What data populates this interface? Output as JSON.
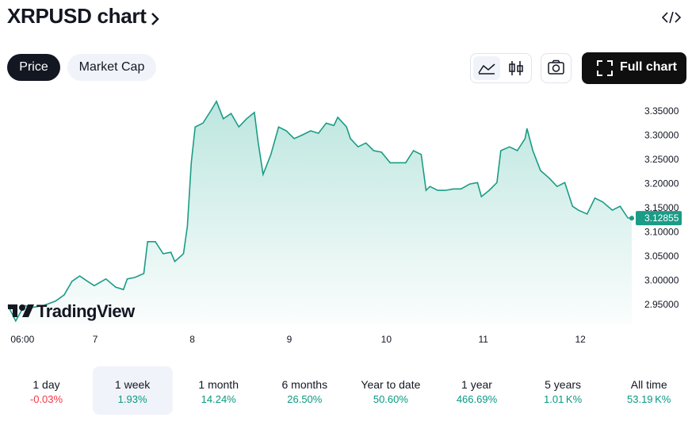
{
  "header": {
    "title": "XRPUSD chart"
  },
  "toolbar": {
    "tabs": [
      "Price",
      "Market Cap"
    ],
    "full_chart": "Full chart"
  },
  "watermark": "TradingView",
  "chart_data": {
    "type": "area",
    "x": [
      6.1,
      6.18,
      6.27,
      6.35,
      6.47,
      6.59,
      6.68,
      6.76,
      6.84,
      6.92,
      6.99,
      7.11,
      7.21,
      7.29,
      7.33,
      7.41,
      7.5,
      7.54,
      7.62,
      7.7,
      7.78,
      7.82,
      7.91,
      7.95,
      7.99,
      8.03,
      8.11,
      8.19,
      8.25,
      8.32,
      8.4,
      8.48,
      8.56,
      8.64,
      8.68,
      8.73,
      8.81,
      8.89,
      8.97,
      9.05,
      9.14,
      9.22,
      9.3,
      9.38,
      9.46,
      9.5,
      9.59,
      9.63,
      9.71,
      9.79,
      9.87,
      9.95,
      10.04,
      10.12,
      10.2,
      10.28,
      10.36,
      10.41,
      10.45,
      10.53,
      10.61,
      10.69,
      10.77,
      10.86,
      10.94,
      10.98,
      11.06,
      11.14,
      11.18,
      11.27,
      11.35,
      11.43,
      11.45,
      11.51,
      11.59,
      11.68,
      11.76,
      11.84,
      11.92,
      11.98,
      12.07,
      12.15,
      12.23,
      12.33,
      12.41,
      12.49,
      12.53
    ],
    "series": [
      {
        "name": "XRPUSD",
        "color": "#1a9c86",
        "values": [
          2.948,
          2.916,
          2.948,
          2.944,
          2.948,
          2.957,
          2.97,
          2.998,
          3.009,
          2.998,
          2.989,
          3.003,
          2.986,
          2.981,
          3.003,
          3.006,
          3.014,
          3.08,
          3.08,
          3.055,
          3.058,
          3.039,
          3.055,
          3.112,
          3.243,
          3.317,
          3.325,
          3.35,
          3.37,
          3.334,
          3.345,
          3.317,
          3.334,
          3.347,
          3.284,
          3.219,
          3.26,
          3.317,
          3.309,
          3.293,
          3.301,
          3.309,
          3.304,
          3.325,
          3.32,
          3.337,
          3.317,
          3.293,
          3.276,
          3.284,
          3.268,
          3.265,
          3.243,
          3.243,
          3.243,
          3.268,
          3.26,
          3.186,
          3.194,
          3.186,
          3.186,
          3.189,
          3.189,
          3.199,
          3.202,
          3.173,
          3.186,
          3.202,
          3.268,
          3.276,
          3.268,
          3.293,
          3.314,
          3.268,
          3.227,
          3.211,
          3.194,
          3.202,
          3.153,
          3.145,
          3.137,
          3.17,
          3.162,
          3.145,
          3.153,
          3.129,
          3.12855
        ]
      }
    ],
    "xlim": [
      6.1,
      12.53
    ],
    "xticks": [
      {
        "value": 6.25,
        "label": "06:00"
      },
      7,
      8,
      9,
      10,
      11,
      12
    ],
    "ylim": [
      2.91,
      3.38
    ],
    "yticks": [
      {
        "value": 3.35,
        "label": "3.35000"
      },
      {
        "value": 3.3,
        "label": "3.30000"
      },
      {
        "value": 3.25,
        "label": "3.25000"
      },
      {
        "value": 3.2,
        "label": "3.20000"
      },
      {
        "value": 3.15,
        "label": "3.15000"
      },
      {
        "value": 3.1,
        "label": "3.10000"
      },
      {
        "value": 3.05,
        "label": "3.05000"
      },
      {
        "value": 3.0,
        "label": "3.00000"
      },
      {
        "value": 2.95,
        "label": "2.95000"
      }
    ]
  },
  "periods": [
    {
      "label": "1 day",
      "change": "-0.03%",
      "direction": "down"
    },
    {
      "label": "1 week",
      "change": "1.93%",
      "direction": "up"
    },
    {
      "label": "1 month",
      "change": "14.24%",
      "direction": "up"
    },
    {
      "label": "6 months",
      "change": "26.50%",
      "direction": "up"
    },
    {
      "label": "Year to date",
      "change": "50.60%",
      "direction": "up"
    },
    {
      "label": "1 year",
      "change": "466.69%",
      "direction": "up"
    },
    {
      "label": "5 years",
      "change": "1.01 K%",
      "direction": "up"
    },
    {
      "label": "All time",
      "change": "53.19 K%",
      "direction": "up"
    }
  ]
}
